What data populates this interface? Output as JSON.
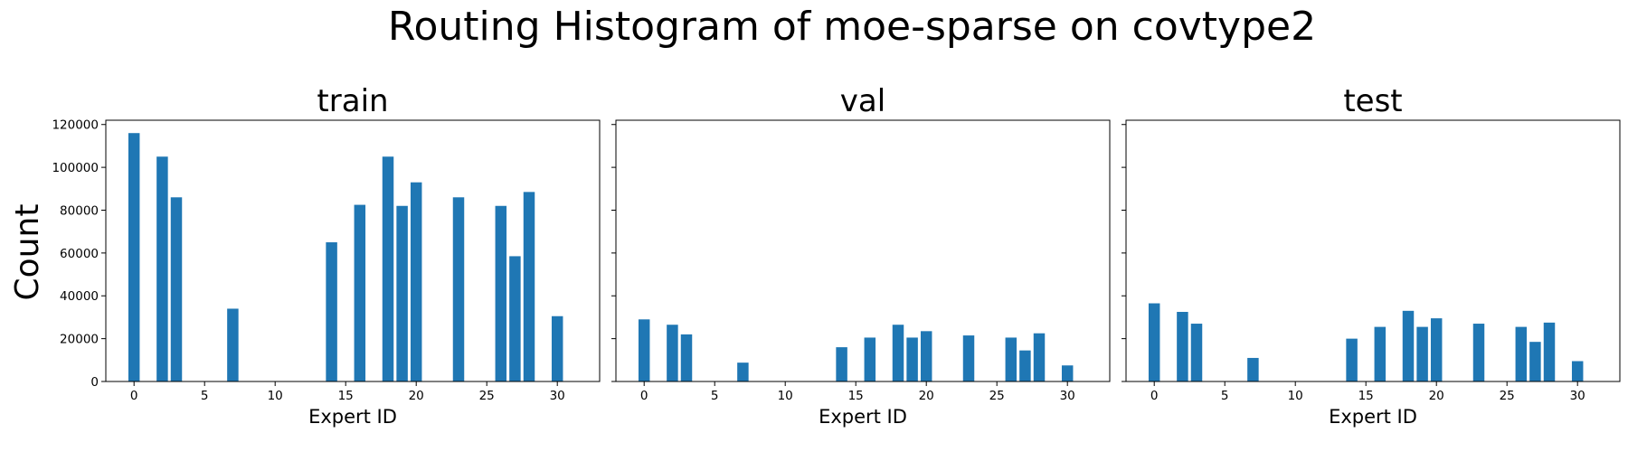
{
  "chart_data": {
    "type": "bar",
    "title": "Routing Histogram of moe-sparse on covtype2",
    "ylabel": "Count",
    "xlabel": "Expert ID",
    "ylim": [
      0,
      122000
    ],
    "xlim": [
      -2,
      33
    ],
    "xticks": [
      0,
      5,
      10,
      15,
      20,
      25,
      30
    ],
    "yticks": [
      0,
      20000,
      40000,
      60000,
      80000,
      100000,
      120000
    ],
    "color": "#1f77b4",
    "experts": [
      0,
      2,
      3,
      7,
      14,
      16,
      18,
      19,
      20,
      23,
      26,
      27,
      28,
      30
    ],
    "panels": [
      {
        "title": "train",
        "values": [
          116000,
          105000,
          86000,
          34000,
          65000,
          82500,
          105000,
          82000,
          93000,
          86000,
          82000,
          58500,
          88500,
          30500
        ]
      },
      {
        "title": "val",
        "values": [
          29000,
          26500,
          22000,
          8800,
          16000,
          20500,
          26500,
          20500,
          23500,
          21500,
          20500,
          14500,
          22500,
          7500
        ]
      },
      {
        "title": "test",
        "values": [
          36500,
          32500,
          27000,
          11000,
          20000,
          25500,
          33000,
          25500,
          29500,
          27000,
          25500,
          18500,
          27500,
          9500
        ]
      }
    ]
  }
}
